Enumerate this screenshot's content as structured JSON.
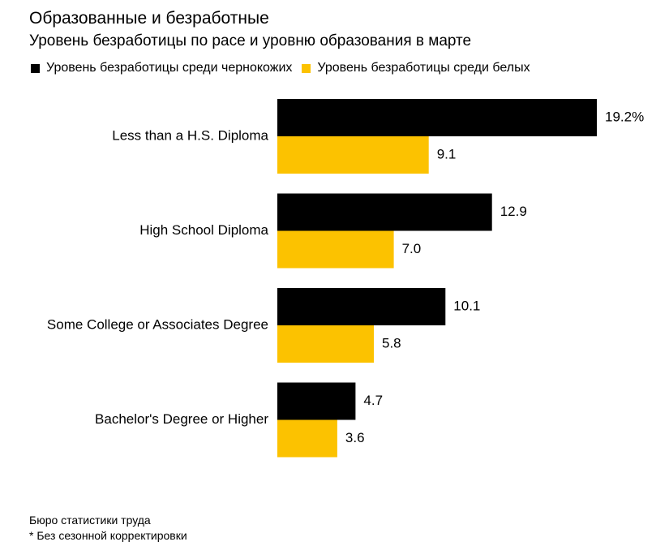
{
  "title": "Образованные и безработные",
  "subtitle": "Уровень безработицы по расе и уровню образования в марте",
  "legend": [
    {
      "label": "Уровень безработицы среди чернокожих",
      "color": "#000000"
    },
    {
      "label": "Уровень безработицы среди белых",
      "color": "#fcc200"
    }
  ],
  "chart_data": {
    "type": "bar",
    "orientation": "horizontal",
    "categories": [
      "Less than a H.S. Diploma",
      "High School Diploma",
      "Some College or Associates Degree",
      "Bachelor's Degree or Higher"
    ],
    "series": [
      {
        "name": "Уровень безработицы среди чернокожих",
        "color": "#000000",
        "values": [
          19.2,
          12.9,
          10.1,
          4.7
        ],
        "value_labels": [
          "19.2%",
          "12.9",
          "10.1",
          "4.7"
        ]
      },
      {
        "name": "Уровень безработицы среди белых",
        "color": "#fcc200",
        "values": [
          9.1,
          7.0,
          5.8,
          3.6
        ],
        "value_labels": [
          "9.1",
          "7.0",
          "5.8",
          "3.6"
        ]
      }
    ],
    "xlim": [
      0,
      19.2
    ],
    "grid": false,
    "legend_position": "top-left"
  },
  "footer": {
    "source": "Бюро статистики труда",
    "note": "* Без сезонной корректировки"
  }
}
